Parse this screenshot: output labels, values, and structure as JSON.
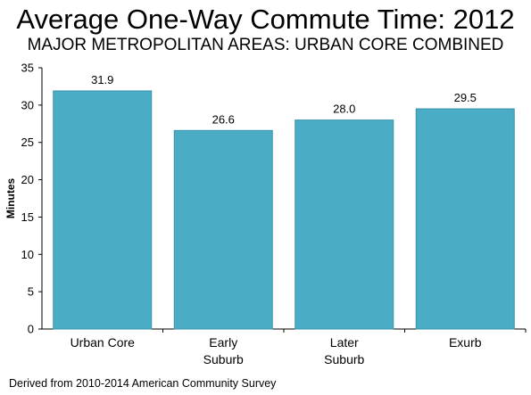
{
  "title": "Average One-Way Commute Time: 2012",
  "subtitle": "MAJOR METROPOLITAN AREAS: URBAN CORE COMBINED",
  "source": "Derived from 2010-2014 American Community Survey",
  "colors": {
    "bar": "#4BACC6",
    "bar_stroke": "#3A93AB",
    "axis": "#000000"
  },
  "chart_data": {
    "type": "bar",
    "categories": [
      [
        "Urban Core"
      ],
      [
        "Early",
        "Suburb"
      ],
      [
        "Later",
        "Suburb"
      ],
      [
        "Exurb"
      ]
    ],
    "values": [
      31.9,
      26.6,
      28.0,
      29.5
    ],
    "value_labels": [
      "31.9",
      "26.6",
      "28.0",
      "29.5"
    ],
    "ylabel": "Minutes",
    "xlabel": "",
    "ylim": [
      0,
      35
    ],
    "yticks": [
      0,
      5,
      10,
      15,
      20,
      25,
      30,
      35
    ],
    "grid": false,
    "legend": "none"
  }
}
